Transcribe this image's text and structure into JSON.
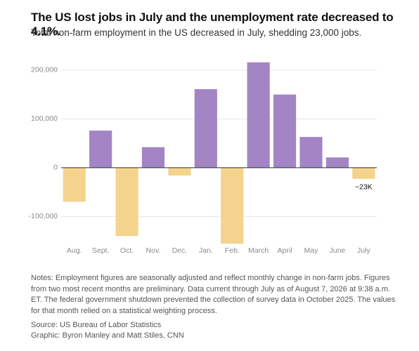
{
  "chart_data": {
    "type": "bar",
    "title": "The US lost jobs in July and the unemployment rate decreased to 4.1%.",
    "subtitle": "Total non-farm employment in the US decreased in July, shedding 23,000 jobs.",
    "categories": [
      "Aug.",
      "Sept.",
      "Oct.",
      "Nov.",
      "Dec.",
      "Jan.",
      "Feb.",
      "March",
      "April",
      "May",
      "June",
      "July"
    ],
    "values": [
      -70000,
      76000,
      -140000,
      42000,
      -16000,
      161000,
      -156000,
      216000,
      150000,
      63000,
      21000,
      -23000
    ],
    "value_labels": [
      null,
      null,
      null,
      null,
      null,
      null,
      null,
      null,
      null,
      null,
      null,
      "−23K"
    ],
    "positive_color": "#a385c5",
    "negative_color": "#f4d38c",
    "ylim": [
      -160000,
      220000
    ],
    "yticks": [
      {
        "value": -100000,
        "label": "-100,000"
      },
      0,
      {
        "value": 100000,
        "label": "100,000"
      },
      {
        "value": 200000,
        "label": "200,000"
      }
    ],
    "grid": true,
    "notes": "Notes: Employment figures are seasonally adjusted and reflect monthly change in non-farm jobs. Figures from two most recent months are preliminary. Data current through July as of August 7, 2026 at 9:38 a.m. ET. The federal government shutdown prevented the collection of survey data in October 2025. The values for that month relied on a statistical weighting process.",
    "source": "Source: US Bureau of Labor Statistics",
    "credit": "Graphic: Byron Manley and Matt Stiles, CNN"
  }
}
